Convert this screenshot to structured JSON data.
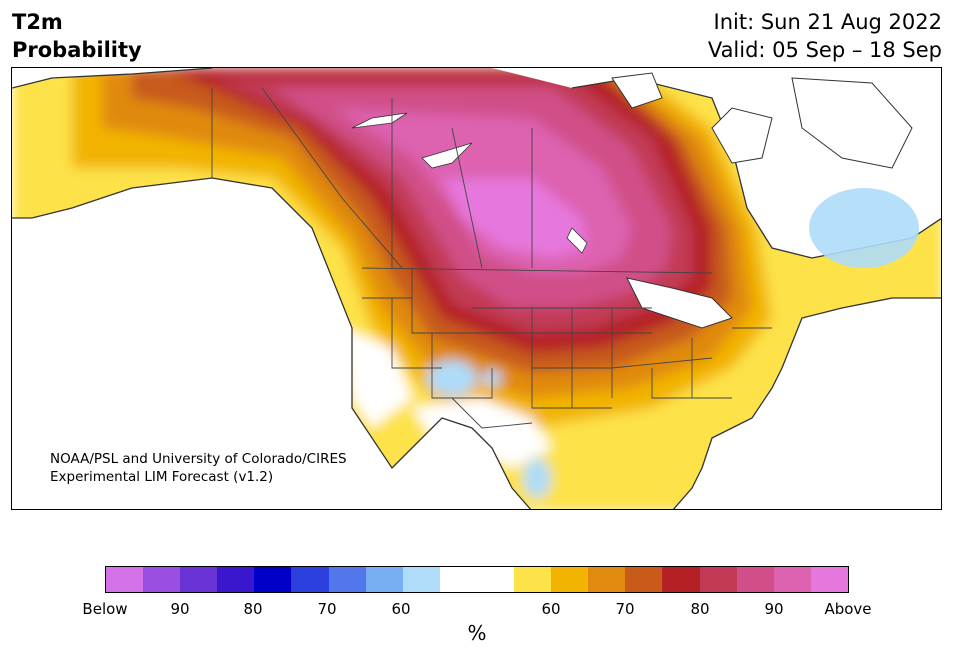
{
  "header": {
    "title_line1": "T2m",
    "title_line2": "Probability",
    "init": "Init: Sun 21 Aug 2022",
    "valid": "Valid: 05 Sep – 18 Sep"
  },
  "map": {
    "credit_line1": "NOAA/PSL and University of Colorado/CIRES",
    "credit_line2": "Experimental LIM Forecast (v1.2)",
    "region": "North America"
  },
  "colorbar": {
    "unit": "%",
    "tick_labels": [
      "Below",
      "90",
      "80",
      "70",
      "60",
      "60",
      "70",
      "80",
      "90",
      "Above"
    ],
    "below_colors": [
      "#d473e8",
      "#9b4fe0",
      "#6a33d6",
      "#3a17cf",
      "#0000c8",
      "#2a3fdc",
      "#5277ea",
      "#78aef2",
      "#aedcf9"
    ],
    "above_colors": [
      "#fde24a",
      "#f2b400",
      "#e08a10",
      "#c85a1a",
      "#b52025",
      "#c23a55",
      "#d04f88",
      "#dd62b0",
      "#e677dc"
    ],
    "neutral_color": "#ffffff"
  }
}
